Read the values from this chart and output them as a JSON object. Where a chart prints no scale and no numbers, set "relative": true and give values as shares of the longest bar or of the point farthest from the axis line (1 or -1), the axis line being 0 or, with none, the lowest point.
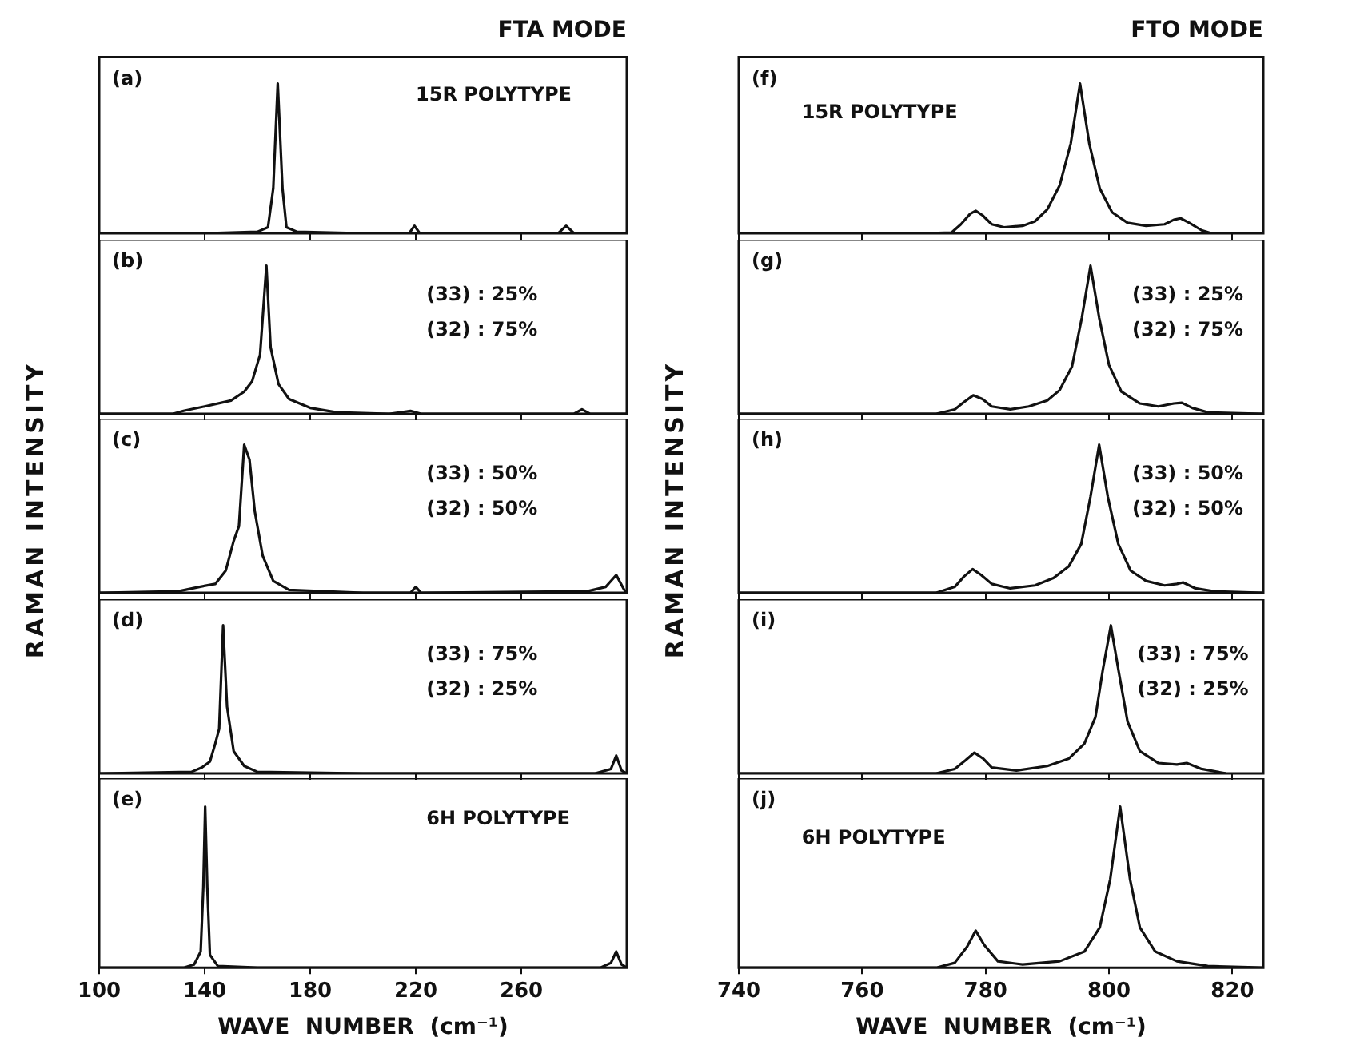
{
  "chart_data": [
    {
      "type": "line",
      "title": "FTA MODE",
      "relative": true,
      "color": "#111111",
      "xlim": [
        100,
        300
      ],
      "xticks": [
        100,
        140,
        180,
        220,
        260
      ],
      "tick_labels": false,
      "annotations": [
        "(a)",
        "15R POLYTYPE"
      ],
      "x": [
        100,
        140,
        160,
        164,
        166,
        167.7,
        169.5,
        171,
        175,
        200,
        217.5,
        219.5,
        221.5,
        274,
        277,
        280,
        300
      ],
      "values": [
        0,
        0,
        0.01,
        0.04,
        0.3,
        1,
        0.3,
        0.04,
        0.01,
        0,
        0,
        0.05,
        0,
        0,
        0.05,
        0,
        0
      ]
    },
    {
      "type": "line",
      "relative": true,
      "color": "#111111",
      "xlim": [
        100,
        300
      ],
      "xticks": [
        100,
        140,
        180,
        220,
        260
      ],
      "tick_labels": false,
      "annotations": [
        "(b)",
        "(33) : 25%",
        "(32) : 75%"
      ],
      "x": [
        100,
        128,
        132,
        140,
        150,
        155,
        158,
        161,
        163.4,
        165,
        168,
        172,
        180,
        190,
        210,
        218,
        222,
        280,
        283,
        286,
        300
      ],
      "values": [
        0,
        0,
        0.02,
        0.05,
        0.09,
        0.15,
        0.22,
        0.4,
        1,
        0.45,
        0.2,
        0.1,
        0.04,
        0.01,
        0,
        0.02,
        0,
        0,
        0.03,
        0,
        0
      ]
    },
    {
      "type": "line",
      "relative": true,
      "color": "#111111",
      "ylabel": "RAMAN  INTENSITY",
      "xlim": [
        100,
        300
      ],
      "xticks": [
        100,
        140,
        180,
        220,
        260
      ],
      "tick_labels": false,
      "annotations": [
        "(c)",
        "(33) : 50%",
        "(32) : 50%"
      ],
      "x": [
        100,
        130,
        138,
        144,
        148,
        151,
        153,
        155,
        157,
        159,
        162,
        166,
        172,
        200,
        218,
        220,
        222,
        285,
        292,
        296,
        299,
        300
      ],
      "values": [
        0,
        0.01,
        0.04,
        0.06,
        0.15,
        0.35,
        0.45,
        1,
        0.9,
        0.55,
        0.25,
        0.08,
        0.02,
        0,
        0,
        0.04,
        0,
        0.01,
        0.04,
        0.12,
        0.02,
        0
      ]
    },
    {
      "type": "line",
      "relative": true,
      "color": "#111111",
      "xlim": [
        100,
        300
      ],
      "xticks": [
        100,
        140,
        180,
        220,
        260
      ],
      "tick_labels": false,
      "annotations": [
        "(d)",
        "(33) : 75%",
        "(32) : 25%"
      ],
      "x": [
        100,
        135,
        139,
        142,
        144,
        145.5,
        147,
        148.5,
        151,
        155,
        160,
        200,
        288,
        294,
        296,
        298,
        300
      ],
      "values": [
        0,
        0.01,
        0.04,
        0.08,
        0.2,
        0.3,
        1,
        0.45,
        0.15,
        0.05,
        0.01,
        0,
        0,
        0.03,
        0.12,
        0.02,
        0
      ]
    },
    {
      "type": "line",
      "relative": true,
      "color": "#111111",
      "xlabel": "WAVE  NUMBER  (cm⁻¹)",
      "xlim": [
        100,
        300
      ],
      "xticks": [
        100,
        140,
        180,
        220,
        260
      ],
      "tick_labels": "x",
      "annotations": [
        "(e)",
        "6H POLYTYPE"
      ],
      "x": [
        100,
        132,
        136,
        138.5,
        139.5,
        140.2,
        141,
        142,
        145,
        160,
        200,
        290,
        294,
        296,
        298,
        300
      ],
      "values": [
        0,
        0,
        0.02,
        0.1,
        0.5,
        1,
        0.5,
        0.08,
        0.01,
        0,
        0,
        0,
        0.03,
        0.1,
        0.02,
        0
      ]
    },
    {
      "type": "line",
      "title": "FTO MODE",
      "relative": true,
      "color": "#111111",
      "xlim": [
        740,
        825
      ],
      "xticks": [
        740,
        760,
        780,
        800,
        820
      ],
      "tick_labels": false,
      "annotations": [
        "(f)",
        "15R POLYTYPE"
      ],
      "x": [
        740,
        770,
        774.5,
        776,
        777.5,
        778.4,
        779.5,
        781,
        783,
        786,
        788,
        790,
        792,
        793.8,
        795.3,
        796.8,
        798.5,
        800.5,
        803,
        806,
        809,
        810.5,
        811.6,
        813,
        815,
        816.6,
        825
      ],
      "values": [
        0,
        0,
        0.005,
        0.06,
        0.13,
        0.15,
        0.12,
        0.06,
        0.04,
        0.05,
        0.08,
        0.16,
        0.32,
        0.6,
        1,
        0.6,
        0.3,
        0.14,
        0.07,
        0.05,
        0.06,
        0.09,
        0.1,
        0.07,
        0.02,
        0,
        0
      ]
    },
    {
      "type": "line",
      "relative": true,
      "color": "#111111",
      "xlim": [
        740,
        825
      ],
      "xticks": [
        740,
        760,
        780,
        800,
        820
      ],
      "tick_labels": false,
      "annotations": [
        "(g)",
        "(33) : 25%",
        "(32) : 75%"
      ],
      "x": [
        740,
        772,
        775,
        776.5,
        778,
        779.5,
        781,
        784,
        787,
        790,
        792,
        794,
        795.6,
        797,
        798.4,
        800,
        802,
        805,
        808,
        810.5,
        811.8,
        813.5,
        816,
        825
      ],
      "values": [
        0,
        0,
        0.03,
        0.08,
        0.125,
        0.1,
        0.05,
        0.03,
        0.05,
        0.09,
        0.16,
        0.32,
        0.65,
        1,
        0.65,
        0.33,
        0.15,
        0.07,
        0.05,
        0.07,
        0.075,
        0.04,
        0.01,
        0
      ]
    },
    {
      "type": "line",
      "relative": true,
      "color": "#111111",
      "ylabel": "RAMAN  INTENSITY",
      "xlim": [
        740,
        825
      ],
      "xticks": [
        740,
        760,
        780,
        800,
        820
      ],
      "tick_labels": false,
      "annotations": [
        "(h)",
        "(33) : 50%",
        "(32) : 50%"
      ],
      "x": [
        740,
        772,
        775,
        776.5,
        777.9,
        779.3,
        781,
        784,
        788,
        791,
        793.5,
        795.5,
        797,
        798.4,
        799.8,
        801.5,
        803.5,
        806,
        809,
        811,
        812,
        814,
        817,
        825
      ],
      "values": [
        0,
        0,
        0.04,
        0.11,
        0.16,
        0.12,
        0.06,
        0.03,
        0.05,
        0.1,
        0.18,
        0.33,
        0.65,
        1,
        0.65,
        0.33,
        0.15,
        0.08,
        0.05,
        0.06,
        0.07,
        0.03,
        0.01,
        0
      ]
    },
    {
      "type": "line",
      "relative": true,
      "color": "#111111",
      "xlim": [
        740,
        825
      ],
      "xticks": [
        740,
        760,
        780,
        800,
        820
      ],
      "tick_labels": false,
      "annotations": [
        "(i)",
        "(33) : 75%",
        "(32) : 25%"
      ],
      "x": [
        740,
        772,
        775,
        776.8,
        778.2,
        779.6,
        781,
        785,
        790,
        793.5,
        796,
        797.8,
        799,
        800.3,
        801.6,
        803,
        805,
        808,
        811,
        812.6,
        815,
        819
      ],
      "values": [
        0,
        0,
        0.03,
        0.09,
        0.14,
        0.1,
        0.04,
        0.02,
        0.05,
        0.1,
        0.2,
        0.38,
        0.7,
        1,
        0.68,
        0.35,
        0.15,
        0.07,
        0.06,
        0.07,
        0.03,
        0
      ]
    },
    {
      "type": "line",
      "relative": true,
      "color": "#111111",
      "xlabel": "WAVE  NUMBER  (cm⁻¹)",
      "xlim": [
        740,
        825
      ],
      "xticks": [
        740,
        760,
        780,
        800,
        820
      ],
      "tick_labels": "x",
      "annotations": [
        "(j)",
        "6H POLYTYPE"
      ],
      "x": [
        740,
        772,
        775,
        777,
        778.4,
        779.8,
        782,
        786,
        792,
        796,
        798.5,
        800.2,
        801.8,
        803.4,
        805,
        807.5,
        811,
        816,
        825
      ],
      "values": [
        0,
        0,
        0.03,
        0.13,
        0.23,
        0.14,
        0.04,
        0.02,
        0.04,
        0.1,
        0.25,
        0.55,
        1,
        0.55,
        0.25,
        0.1,
        0.04,
        0.01,
        0
      ]
    }
  ]
}
